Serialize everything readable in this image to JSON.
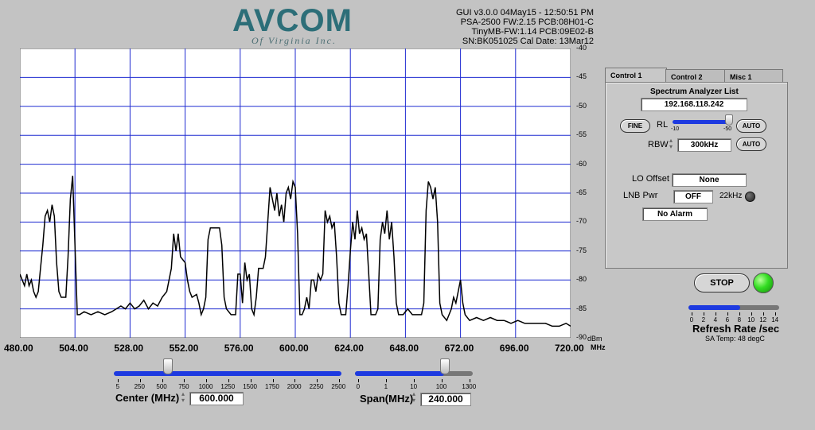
{
  "logo": {
    "main": "AVCOM",
    "sub": "Of Virginia Inc."
  },
  "device_info": [
    "GUI v3.0.0  04May15 - 12:50:51 PM",
    "PSA-2500 FW:2.15 PCB:08H01-C",
    "TinyMB-FW:1.14  PCB:09E02-B",
    "SN:BK051025  Cal Date: 13Mar12"
  ],
  "spectrum": {
    "y_ticks": [
      "-40",
      "-45",
      "-50",
      "-55",
      "-60",
      "-65",
      "-70",
      "-75",
      "-80",
      "-85",
      "-90"
    ],
    "y_unit": "dBm",
    "x_ticks": [
      "480.00",
      "504.00",
      "528.00",
      "552.00",
      "576.00",
      "600.00",
      "624.00",
      "648.00",
      "672.00",
      "696.00",
      "720.00"
    ],
    "x_unit": "MHz",
    "trace": [
      [
        480,
        -79
      ],
      [
        481,
        -80
      ],
      [
        482,
        -81
      ],
      [
        483,
        -79
      ],
      [
        484,
        -81
      ],
      [
        485,
        -80
      ],
      [
        486,
        -82
      ],
      [
        487,
        -83
      ],
      [
        488,
        -82
      ],
      [
        489,
        -78
      ],
      [
        490,
        -74
      ],
      [
        491,
        -69
      ],
      [
        492,
        -68
      ],
      [
        493,
        -70
      ],
      [
        494,
        -67
      ],
      [
        495,
        -69
      ],
      [
        496,
        -77
      ],
      [
        497,
        -82
      ],
      [
        498,
        -83
      ],
      [
        499,
        -83
      ],
      [
        500,
        -83
      ],
      [
        501,
        -76
      ],
      [
        502,
        -66
      ],
      [
        503,
        -62
      ],
      [
        504,
        -74
      ],
      [
        505,
        -86
      ],
      [
        506,
        -86
      ],
      [
        508,
        -85.5
      ],
      [
        511,
        -86
      ],
      [
        514,
        -85.5
      ],
      [
        517,
        -86
      ],
      [
        520,
        -85.5
      ],
      [
        522,
        -85
      ],
      [
        524,
        -84.5
      ],
      [
        526,
        -85
      ],
      [
        528,
        -84
      ],
      [
        530,
        -85
      ],
      [
        532,
        -84.5
      ],
      [
        534,
        -83.5
      ],
      [
        536,
        -85
      ],
      [
        538,
        -84
      ],
      [
        540,
        -84.5
      ],
      [
        542,
        -83
      ],
      [
        544,
        -82
      ],
      [
        546,
        -78
      ],
      [
        547,
        -72
      ],
      [
        548,
        -75
      ],
      [
        549,
        -72
      ],
      [
        550,
        -76
      ],
      [
        552,
        -77
      ],
      [
        553,
        -80
      ],
      [
        554,
        -82
      ],
      [
        555,
        -83
      ],
      [
        557,
        -82.5
      ],
      [
        558,
        -84
      ],
      [
        559,
        -86
      ],
      [
        560,
        -85
      ],
      [
        561,
        -83
      ],
      [
        562,
        -73
      ],
      [
        563,
        -71
      ],
      [
        565,
        -71
      ],
      [
        567,
        -71
      ],
      [
        568,
        -74
      ],
      [
        569,
        -83
      ],
      [
        570,
        -85
      ],
      [
        572,
        -86
      ],
      [
        574,
        -86
      ],
      [
        575,
        -79
      ],
      [
        576,
        -79
      ],
      [
        577,
        -84
      ],
      [
        578,
        -77
      ],
      [
        579,
        -80
      ],
      [
        580,
        -79
      ],
      [
        581,
        -85
      ],
      [
        582,
        -86
      ],
      [
        583,
        -83
      ],
      [
        584,
        -78
      ],
      [
        585,
        -78
      ],
      [
        586,
        -78
      ],
      [
        587,
        -76
      ],
      [
        588,
        -70
      ],
      [
        589,
        -64
      ],
      [
        590,
        -66
      ],
      [
        591,
        -68
      ],
      [
        592,
        -65
      ],
      [
        593,
        -69
      ],
      [
        594,
        -67
      ],
      [
        595,
        -70
      ],
      [
        596,
        -65
      ],
      [
        597,
        -64
      ],
      [
        598,
        -66
      ],
      [
        599,
        -63
      ],
      [
        600,
        -64
      ],
      [
        601,
        -72
      ],
      [
        602,
        -86
      ],
      [
        603,
        -86
      ],
      [
        604,
        -85
      ],
      [
        605,
        -83
      ],
      [
        606,
        -85
      ],
      [
        607,
        -80
      ],
      [
        608,
        -80
      ],
      [
        609,
        -82
      ],
      [
        610,
        -79
      ],
      [
        611,
        -80
      ],
      [
        612,
        -79
      ],
      [
        613,
        -68
      ],
      [
        614,
        -70
      ],
      [
        615,
        -69
      ],
      [
        616,
        -71
      ],
      [
        617,
        -70
      ],
      [
        618,
        -76
      ],
      [
        619,
        -84
      ],
      [
        620,
        -86
      ],
      [
        622,
        -86
      ],
      [
        623,
        -81
      ],
      [
        624,
        -75
      ],
      [
        625,
        -70
      ],
      [
        626,
        -73
      ],
      [
        627,
        -68
      ],
      [
        628,
        -72
      ],
      [
        629,
        -71
      ],
      [
        630,
        -73
      ],
      [
        631,
        -72
      ],
      [
        632,
        -79
      ],
      [
        633,
        -86
      ],
      [
        635,
        -86
      ],
      [
        636,
        -85
      ],
      [
        637,
        -73
      ],
      [
        638,
        -70
      ],
      [
        639,
        -72
      ],
      [
        640,
        -68
      ],
      [
        641,
        -73
      ],
      [
        642,
        -70
      ],
      [
        643,
        -76
      ],
      [
        644,
        -84
      ],
      [
        645,
        -86
      ],
      [
        647,
        -86
      ],
      [
        649,
        -85
      ],
      [
        651,
        -86
      ],
      [
        653,
        -86
      ],
      [
        655,
        -86
      ],
      [
        656,
        -84
      ],
      [
        657,
        -68
      ],
      [
        658,
        -63
      ],
      [
        659,
        -64
      ],
      [
        660,
        -66
      ],
      [
        661,
        -64
      ],
      [
        662,
        -70
      ],
      [
        663,
        -84
      ],
      [
        664,
        -86
      ],
      [
        666,
        -87
      ],
      [
        667,
        -86
      ],
      [
        668,
        -85
      ],
      [
        669,
        -83
      ],
      [
        670,
        -84
      ],
      [
        671,
        -82
      ],
      [
        672,
        -80
      ],
      [
        673,
        -84
      ],
      [
        674,
        -86
      ],
      [
        676,
        -87
      ],
      [
        679,
        -86.5
      ],
      [
        682,
        -87
      ],
      [
        685,
        -86.5
      ],
      [
        688,
        -87
      ],
      [
        691,
        -87
      ],
      [
        694,
        -87.5
      ],
      [
        697,
        -87
      ],
      [
        700,
        -87.5
      ],
      [
        703,
        -87.5
      ],
      [
        706,
        -87.5
      ],
      [
        709,
        -87.5
      ],
      [
        712,
        -88
      ],
      [
        715,
        -88
      ],
      [
        718,
        -87.5
      ],
      [
        720,
        -88
      ]
    ]
  },
  "center": {
    "label": "Center (MHz)",
    "value": "600.000",
    "slider_fraction": 0.24,
    "ticks": [
      "5",
      "250",
      "500",
      "750",
      "1000",
      "1250",
      "1500",
      "1750",
      "2000",
      "2250",
      "2500"
    ]
  },
  "span": {
    "label": "Span(MHz)",
    "value": "240.000",
    "slider_fraction": 0.8,
    "ticks": [
      "0",
      "1",
      "10",
      "100",
      "1300"
    ]
  },
  "tabs": [
    "Control 1",
    "Control 2",
    "Misc 1"
  ],
  "control1": {
    "list_title": "Spectrum Analyzer List",
    "ip": "192.168.118.242",
    "fine_button": "FINE",
    "rl_label": "RL",
    "rl_min": "-10",
    "rl_max": "-50",
    "rl_fraction": 1.0,
    "auto_button": "AUTO",
    "rbw_label": "RBW",
    "rbw_value": "300kHz",
    "lo_offset_label": "LO Offset",
    "lo_offset_value": "None",
    "lnb_pwr_label": "LNB Pwr",
    "lnb_pwr_value": "OFF",
    "khz22_label": "22kHz",
    "alarm_value": "No Alarm"
  },
  "stop_button": "STOP",
  "refresh": {
    "label": "Refresh Rate /sec",
    "fraction": 0.57,
    "ticks": [
      "0",
      "2",
      "4",
      "6",
      "8",
      "10",
      "12",
      "14"
    ],
    "temp": "SA Temp: 48 degC"
  },
  "colors": {
    "background": "#c3c3c3",
    "plot_bg": "#ffffff",
    "grid": "#1f2bd1",
    "trace": "#000000",
    "slider": "#1d3ae0",
    "led_green": "#33dd22",
    "led_dark": "#3a3a3a"
  }
}
